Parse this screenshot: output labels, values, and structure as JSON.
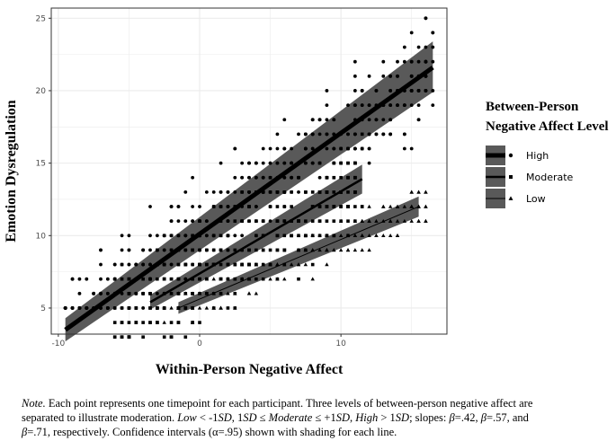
{
  "chart_data": {
    "type": "scatter",
    "title": "",
    "xlabel": "Within-Person Negative Affect",
    "ylabel": "Emotion Dysregulation",
    "xlim": [
      -10.5,
      17.5
    ],
    "ylim": [
      3.2,
      25.7
    ],
    "xticks": [
      -10,
      0,
      10
    ],
    "xtick_labels": [
      "-10",
      "0",
      "10"
    ],
    "yticks": [
      5,
      10,
      15,
      20,
      25
    ],
    "ytick_labels": [
      "5",
      "10",
      "15",
      "20",
      "25"
    ],
    "grid": true,
    "legend": {
      "title_lines": [
        "Between-Person",
        "Negative Affect Level"
      ],
      "placement": "right",
      "entries": [
        "High",
        "Moderate",
        "Low"
      ]
    },
    "series": [
      {
        "name": "High",
        "marker": "circle",
        "line_width": 5,
        "line_start": [
          -9.5,
          3.5
        ],
        "line_end": [
          16.5,
          21.6
        ],
        "ci_start": [
          2.7,
          4.3
        ],
        "ci_end": [
          19.9,
          23.4
        ],
        "points_x_range": [
          -9.5,
          16.6
        ],
        "points_y_range": [
          5,
          25
        ]
      },
      {
        "name": "Moderate",
        "marker": "square",
        "line_width": 2.5,
        "line_start": [
          -3.5,
          5.4
        ],
        "line_end": [
          11.5,
          13.9
        ],
        "ci_start": [
          4.9,
          5.9
        ],
        "ci_end": [
          12.9,
          14.9
        ],
        "points_x_range": [
          -6,
          11.5
        ],
        "points_y_range": [
          3,
          25
        ]
      },
      {
        "name": "Low",
        "marker": "triangle",
        "line_width": 1,
        "line_start": [
          -1.5,
          5.0
        ],
        "line_end": [
          15.5,
          12.0
        ],
        "ci_start": [
          4.6,
          5.4
        ],
        "ci_end": [
          11.3,
          12.7
        ],
        "points_x_range": [
          -2.5,
          16.2
        ],
        "points_y_range": [
          3,
          16
        ]
      }
    ]
  },
  "note": {
    "label": "Note.",
    "line1": " Each point represents one timepoint for each participant. Three levels of between-person negative affect are",
    "line2_a": "separated to illustrate moderation. ",
    "low": "Low",
    "line2_b": " < -1",
    "sd1": "SD",
    "line2_c": ", 1",
    "sd2": "SD",
    "line2_d": " ≤ ",
    "moderate": "Moderate",
    "line2_e": " ≤ +1",
    "sd3": "SD",
    "line2_f": ", ",
    "high": "High",
    "line2_g": " > 1",
    "sd4": "SD",
    "line2_h": "; slopes: ",
    "b1": "β",
    "line2_i": "=.42, ",
    "b2": "β",
    "line2_j": "=.57, and",
    "b3": "β",
    "line3": "=.71, respectively. Confidence intervals (α=.95) shown with shading for each line."
  },
  "colors": {
    "panel_background": "#ffffff",
    "grid": "#ebebeb",
    "panel_border": "#333333",
    "points": "#000000",
    "ci_fill": "#595959",
    "lines": "#000000"
  }
}
